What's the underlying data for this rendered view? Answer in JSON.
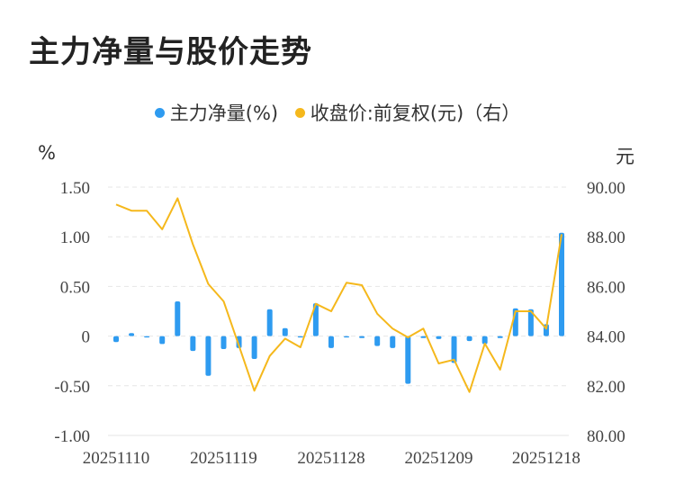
{
  "title": "主力净量与股价走势",
  "legend": {
    "net": "主力净量(%)",
    "price": "收盘价:前复权(元)（右）"
  },
  "units": {
    "left": "%",
    "right": "元"
  },
  "colors": {
    "bar": "#2e9bf0",
    "line": "#f5b81c",
    "grid": "#e6e6e6"
  },
  "chart_data": {
    "type": "bar+line",
    "x_tick_labels": [
      "20251110",
      "20251119",
      "20251128",
      "20251209",
      "20251218"
    ],
    "y_left": {
      "ticks": [
        "1.50",
        "1.00",
        "0.50",
        "0",
        "-0.50",
        "-1.00"
      ],
      "ylim": [
        -1.0,
        1.5
      ]
    },
    "y_right": {
      "ticks": [
        "90.00",
        "88.00",
        "86.00",
        "84.00",
        "82.00",
        "80.00"
      ],
      "ylim": [
        80.0,
        90.0
      ]
    },
    "grid": true,
    "series": [
      {
        "name": "主力净量(%)",
        "type": "bar",
        "axis": "left",
        "values": [
          -0.06,
          0.03,
          -0.01,
          -0.08,
          0.35,
          -0.15,
          -0.4,
          -0.13,
          -0.12,
          -0.23,
          0.27,
          0.08,
          -0.01,
          0.33,
          -0.12,
          -0.01,
          -0.02,
          -0.1,
          -0.12,
          -0.48,
          -0.02,
          -0.03,
          -0.27,
          -0.05,
          -0.08,
          -0.02,
          0.28,
          0.27,
          0.12,
          1.04
        ]
      },
      {
        "name": "收盘价:前复权(元)（右）",
        "type": "line",
        "axis": "right",
        "values": [
          89.3,
          89.05,
          89.05,
          88.3,
          89.55,
          87.7,
          86.1,
          85.4,
          83.6,
          81.8,
          83.2,
          83.9,
          83.55,
          85.3,
          85.0,
          86.15,
          86.05,
          84.9,
          84.3,
          83.95,
          84.3,
          82.9,
          83.05,
          81.75,
          83.7,
          82.65,
          85.0,
          85.0,
          84.3,
          88.1
        ]
      }
    ]
  }
}
